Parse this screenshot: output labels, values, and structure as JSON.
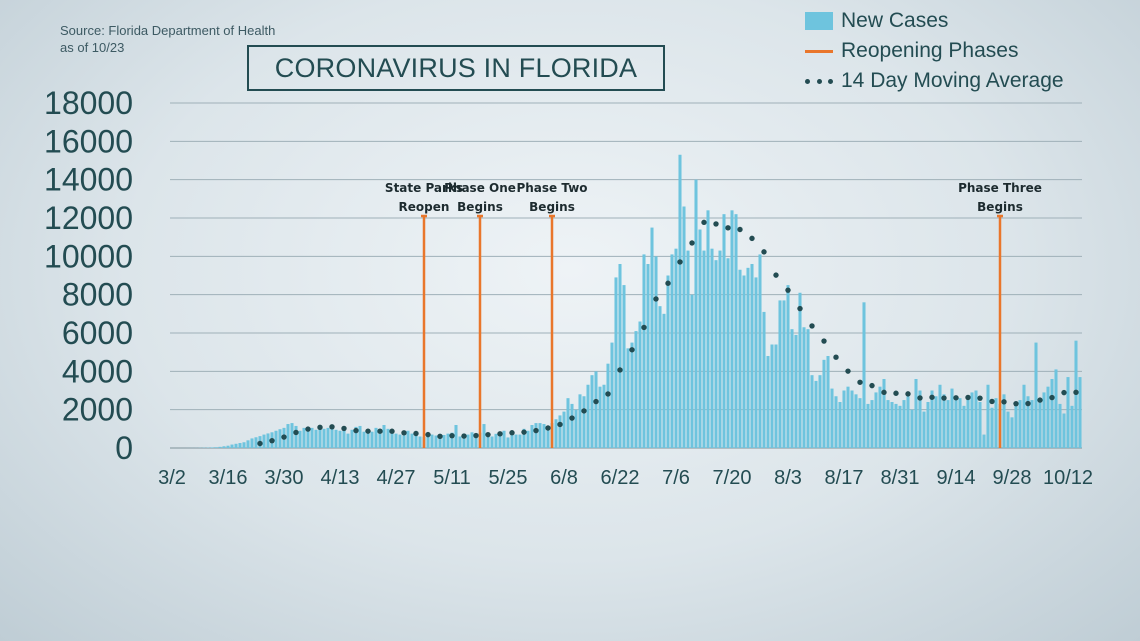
{
  "source": {
    "line1": "Source: Florida Department of Health",
    "line2": "as of 10/23"
  },
  "colors": {
    "bars": "#6ec4de",
    "phase_lines": "#e9762b",
    "moving_average": "#234c52",
    "text": "#234c52"
  },
  "chart_data": {
    "type": "bar",
    "title": "CORONAVIRUS IN FLORIDA",
    "xlabel": "",
    "ylabel": "",
    "ylim": [
      0,
      18000
    ],
    "yticks": [
      0,
      2000,
      4000,
      6000,
      8000,
      10000,
      12000,
      14000,
      16000,
      18000
    ],
    "grid": true,
    "legend_position": "top-right",
    "xtick_labels": [
      "3/2",
      "3/16",
      "3/30",
      "4/13",
      "4/27",
      "5/11",
      "5/25",
      "6/8",
      "6/22",
      "7/6",
      "7/20",
      "8/3",
      "8/17",
      "8/31",
      "9/14",
      "9/28",
      "10/12"
    ],
    "x_start": "3/2",
    "x_end": "10/23",
    "series": [
      {
        "name": "New Cases",
        "type": "bar",
        "values": [
          0,
          0,
          0,
          0,
          2,
          3,
          5,
          10,
          15,
          20,
          30,
          40,
          60,
          90,
          120,
          180,
          220,
          260,
          300,
          400,
          500,
          560,
          620,
          700,
          760,
          820,
          900,
          980,
          1050,
          1250,
          1300,
          1150,
          900,
          1050,
          1100,
          1050,
          950,
          1100,
          1000,
          1050,
          1150,
          950,
          900,
          1050,
          750,
          950,
          1100,
          1150,
          850,
          900,
          850,
          1050,
          750,
          1200,
          1000,
          900,
          750,
          700,
          650,
          900,
          750,
          700,
          600,
          580,
          620,
          700,
          650,
          600,
          680,
          750,
          800,
          1200,
          600,
          750,
          700,
          820,
          650,
          800,
          1250,
          700,
          600,
          740,
          700,
          900,
          550,
          850,
          700,
          700,
          1000,
          900,
          1200,
          1300,
          1300,
          1250,
          1050,
          1300,
          1500,
          1700,
          1900,
          2600,
          2300,
          2000,
          2800,
          2700,
          3300,
          3800,
          4000,
          3200,
          3300,
          4400,
          5500,
          8900,
          9600,
          8500,
          5200,
          5500,
          6100,
          6600,
          10100,
          9600,
          11500,
          10000,
          7400,
          7000,
          9000,
          10100,
          10400,
          15300,
          12600,
          10300,
          8000,
          14000,
          11400,
          10300,
          12400,
          10400,
          9800,
          10300,
          12200,
          9900,
          12400,
          12200,
          9300,
          9000,
          9400,
          9600,
          8900,
          10100,
          7100,
          4800,
          5400,
          5400,
          7700,
          7700,
          8500,
          6200,
          5900,
          8100,
          6300,
          6200,
          3800,
          3500,
          3800,
          4600,
          4800,
          3100,
          2700,
          2400,
          3000,
          3200,
          3000,
          2800,
          2600,
          7600,
          2300,
          2500,
          2900,
          3200,
          3600,
          2500,
          2400,
          2300,
          2200,
          2500,
          2700,
          2000,
          3600,
          3000,
          1900,
          2400,
          3000,
          2700,
          3300,
          2800,
          2500,
          3100,
          2700,
          2600,
          2200,
          2600,
          2900,
          3000,
          2400,
          700,
          3300,
          2100,
          2600,
          2300,
          2800,
          1900,
          1600,
          2300,
          2500,
          3300,
          2700,
          2500,
          5500,
          2400,
          2900,
          3200,
          3600,
          4100,
          2300,
          1800,
          3700,
          2200,
          5600,
          3700
        ]
      },
      {
        "name": "14 Day Moving Average",
        "type": "scatter",
        "values": [
          0,
          0,
          0,
          0,
          0,
          1,
          1,
          2,
          4,
          5,
          8,
          10,
          15,
          21,
          29,
          41,
          56,
          74,
          95,
          122,
          156,
          194,
          235,
          281,
          331,
          383,
          441,
          505,
          571,
          654,
          735,
          811,
          876,
          938,
          986,
          1025,
          1049,
          1079,
          1096,
          1103,
          1107,
          1087,
          1047,
          1022,
          963,
          938,
          911,
          891,
          877,
          879,
          880,
          887,
          876,
          879,
          871,
          875,
          861,
          830,
          793,
          789,
          776,
          756,
          728,
          708,
          698,
          670,
          650,
          611,
          612,
          632,
          643,
          639,
          618,
          622,
          619,
          628,
          650,
          668,
          711,
          697,
          689,
          713,
          741,
          744,
          759,
          797,
          800,
          805,
          827,
          849,
          877,
          911,
          955,
          1002,
          1043,
          1079,
          1136,
          1228,
          1320,
          1421,
          1563,
          1689,
          1793,
          1936,
          2087,
          2253,
          2423,
          2573,
          2704,
          2822,
          3035,
          3557,
          4071,
          4554,
          4834,
          5125,
          5395,
          5698,
          6289,
          6795,
          7357,
          7775,
          8080,
          8339,
          8596,
          8839,
          8972,
          9709,
          10216,
          10503,
          10697,
          11237,
          11465,
          11773,
          11925,
          11819,
          11692,
          11684,
          11528,
          11488,
          11636,
          11793,
          11400,
          11357,
          11246,
          10937,
          10855,
          10604,
          10233,
          9840,
          9521,
          9020,
          8827,
          8499,
          8234,
          7877,
          7469,
          7274,
          6907,
          6634,
          6368,
          6179,
          5927,
          5580,
          5237,
          4944,
          4738,
          4517,
          4336,
          4010,
          3733,
          3536,
          3429,
          3329,
          3200,
          3254,
          3115,
          2963,
          2903,
          2884,
          2884,
          2856,
          2884,
          2859,
          2824,
          2781,
          2703,
          2613,
          2725,
          2698,
          2647,
          2638,
          2646,
          2607,
          2625,
          2650,
          2621,
          2693,
          2646,
          2639,
          2614,
          2586,
          2600,
          2511,
          2485,
          2431,
          2443,
          2417,
          2409,
          2388,
          2355,
          2313,
          2305,
          2293,
          2319,
          2329,
          2314,
          2499,
          2502,
          2539,
          2632,
          2715,
          2846,
          2889,
          2853,
          2940,
          2907,
          3143,
          3171
        ]
      }
    ],
    "annotations": [
      {
        "name": "Reopening Phases",
        "date": "5/4",
        "label_lines": [
          "State Parks",
          "Reopen"
        ]
      },
      {
        "name": "Reopening Phases",
        "date": "5/18",
        "label_lines": [
          "Phase One",
          "Begins"
        ]
      },
      {
        "name": "Reopening Phases",
        "date": "6/5",
        "label_lines": [
          "Phase Two",
          "Begins"
        ]
      },
      {
        "name": "Reopening Phases",
        "date": "9/25",
        "label_lines": [
          "Phase Three",
          "Begins"
        ]
      }
    ],
    "legend": [
      "New Cases",
      "Reopening Phases",
      "14 Day Moving Average"
    ]
  }
}
